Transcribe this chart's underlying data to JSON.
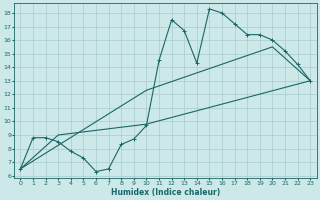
{
  "bg_color": "#cce8e8",
  "grid_color": "#aacccc",
  "line_color": "#1a6666",
  "xlabel": "Humidex (Indice chaleur)",
  "xlim": [
    -0.5,
    23.5
  ],
  "ylim": [
    5.8,
    18.7
  ],
  "yticks": [
    6,
    7,
    8,
    9,
    10,
    11,
    12,
    13,
    14,
    15,
    16,
    17,
    18
  ],
  "xticks": [
    0,
    1,
    2,
    3,
    4,
    5,
    6,
    7,
    8,
    9,
    10,
    11,
    12,
    13,
    14,
    15,
    16,
    17,
    18,
    19,
    20,
    21,
    22,
    23
  ],
  "line1_x": [
    0,
    1,
    2,
    3,
    4,
    5,
    6,
    7,
    8,
    9,
    10,
    11,
    12,
    13,
    14,
    15,
    16,
    17,
    18,
    19,
    20,
    21,
    22,
    23
  ],
  "line1_y": [
    6.5,
    8.8,
    8.8,
    8.5,
    7.8,
    7.3,
    6.3,
    6.5,
    8.3,
    8.7,
    9.7,
    14.5,
    17.5,
    16.7,
    14.3,
    18.3,
    18.0,
    17.2,
    16.4,
    16.4,
    16.0,
    15.2,
    14.2,
    13.0
  ],
  "line2_x": [
    0,
    3,
    10,
    23
  ],
  "line2_y": [
    6.5,
    9.0,
    9.8,
    13.0
  ],
  "line3_x": [
    0,
    10,
    20,
    23
  ],
  "line3_y": [
    6.5,
    12.3,
    15.5,
    13.0
  ]
}
